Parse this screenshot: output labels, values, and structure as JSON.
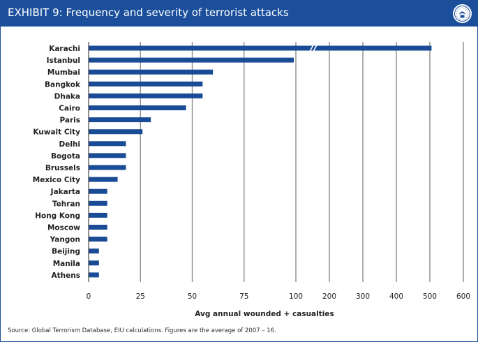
{
  "header": {
    "title": "EXHIBIT 9: Frequency and severity of terrorist attacks",
    "logo_icon": "eiu-seal-icon"
  },
  "footer": {
    "source": "Source: Global Terrorism Database, EIU calculations. Figures are the average of 2007 – 16."
  },
  "colors": {
    "bar": "#1a4b96",
    "header": "#1b4f9c",
    "grid": "#8c8c8c"
  },
  "chart_data": {
    "type": "bar",
    "orientation": "horizontal",
    "categories": [
      "Karachi",
      "Istanbul",
      "Mumbai",
      "Bangkok",
      "Dhaka",
      "Cairo",
      "Paris",
      "Kuwait City",
      "Delhi",
      "Bogota",
      "Brussels",
      "Mexico City",
      "Jakarta",
      "Tehran",
      "Hong Kong",
      "Moscow",
      "Yangon",
      "Beijing",
      "Manila",
      "Athens"
    ],
    "values": [
      505,
      99,
      60,
      55,
      55,
      47,
      30,
      26,
      18,
      18,
      18,
      14,
      9,
      9,
      9,
      9,
      9,
      5,
      5,
      5
    ],
    "xlabel": "Avg annual wounded + casualties",
    "ylabel": "",
    "xticks": [
      "0",
      "25",
      "50",
      "75",
      "100",
      "200",
      "300",
      "400",
      "500",
      "600"
    ],
    "axis_break": "after 100; 100 to 600 in steps of 100",
    "xlim": [
      0,
      600
    ],
    "grid": "vertical",
    "legend": "none"
  }
}
